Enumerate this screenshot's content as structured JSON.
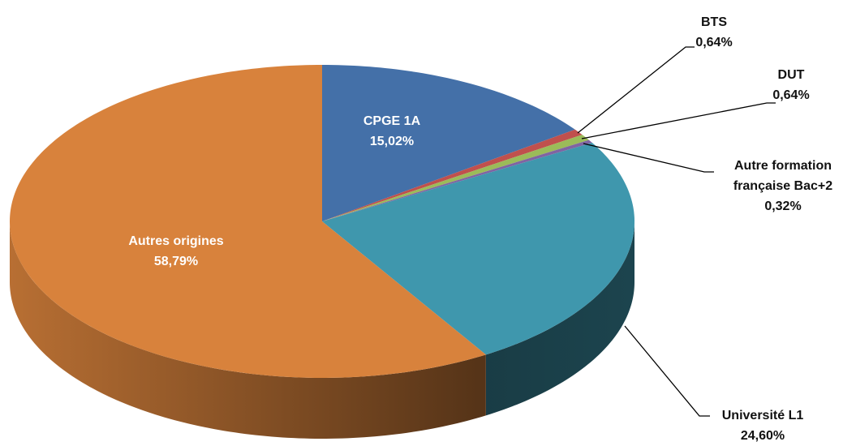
{
  "chart_data": {
    "type": "pie3d",
    "categories": [
      "CPGE 1A",
      "BTS",
      "DUT",
      "Autre formation française Bac+2",
      "Université L1",
      "Autres origines"
    ],
    "values": [
      15.02,
      0.64,
      0.64,
      0.32,
      24.6,
      58.79
    ],
    "value_labels": [
      "15,02%",
      "0,64%",
      "0,64%",
      "0,32%",
      "24,60%",
      "58,79%"
    ],
    "colors": [
      "#4470a8",
      "#c0504d",
      "#9bbb59",
      "#8064a2",
      "#3f97ad",
      "#d8823c"
    ]
  }
}
